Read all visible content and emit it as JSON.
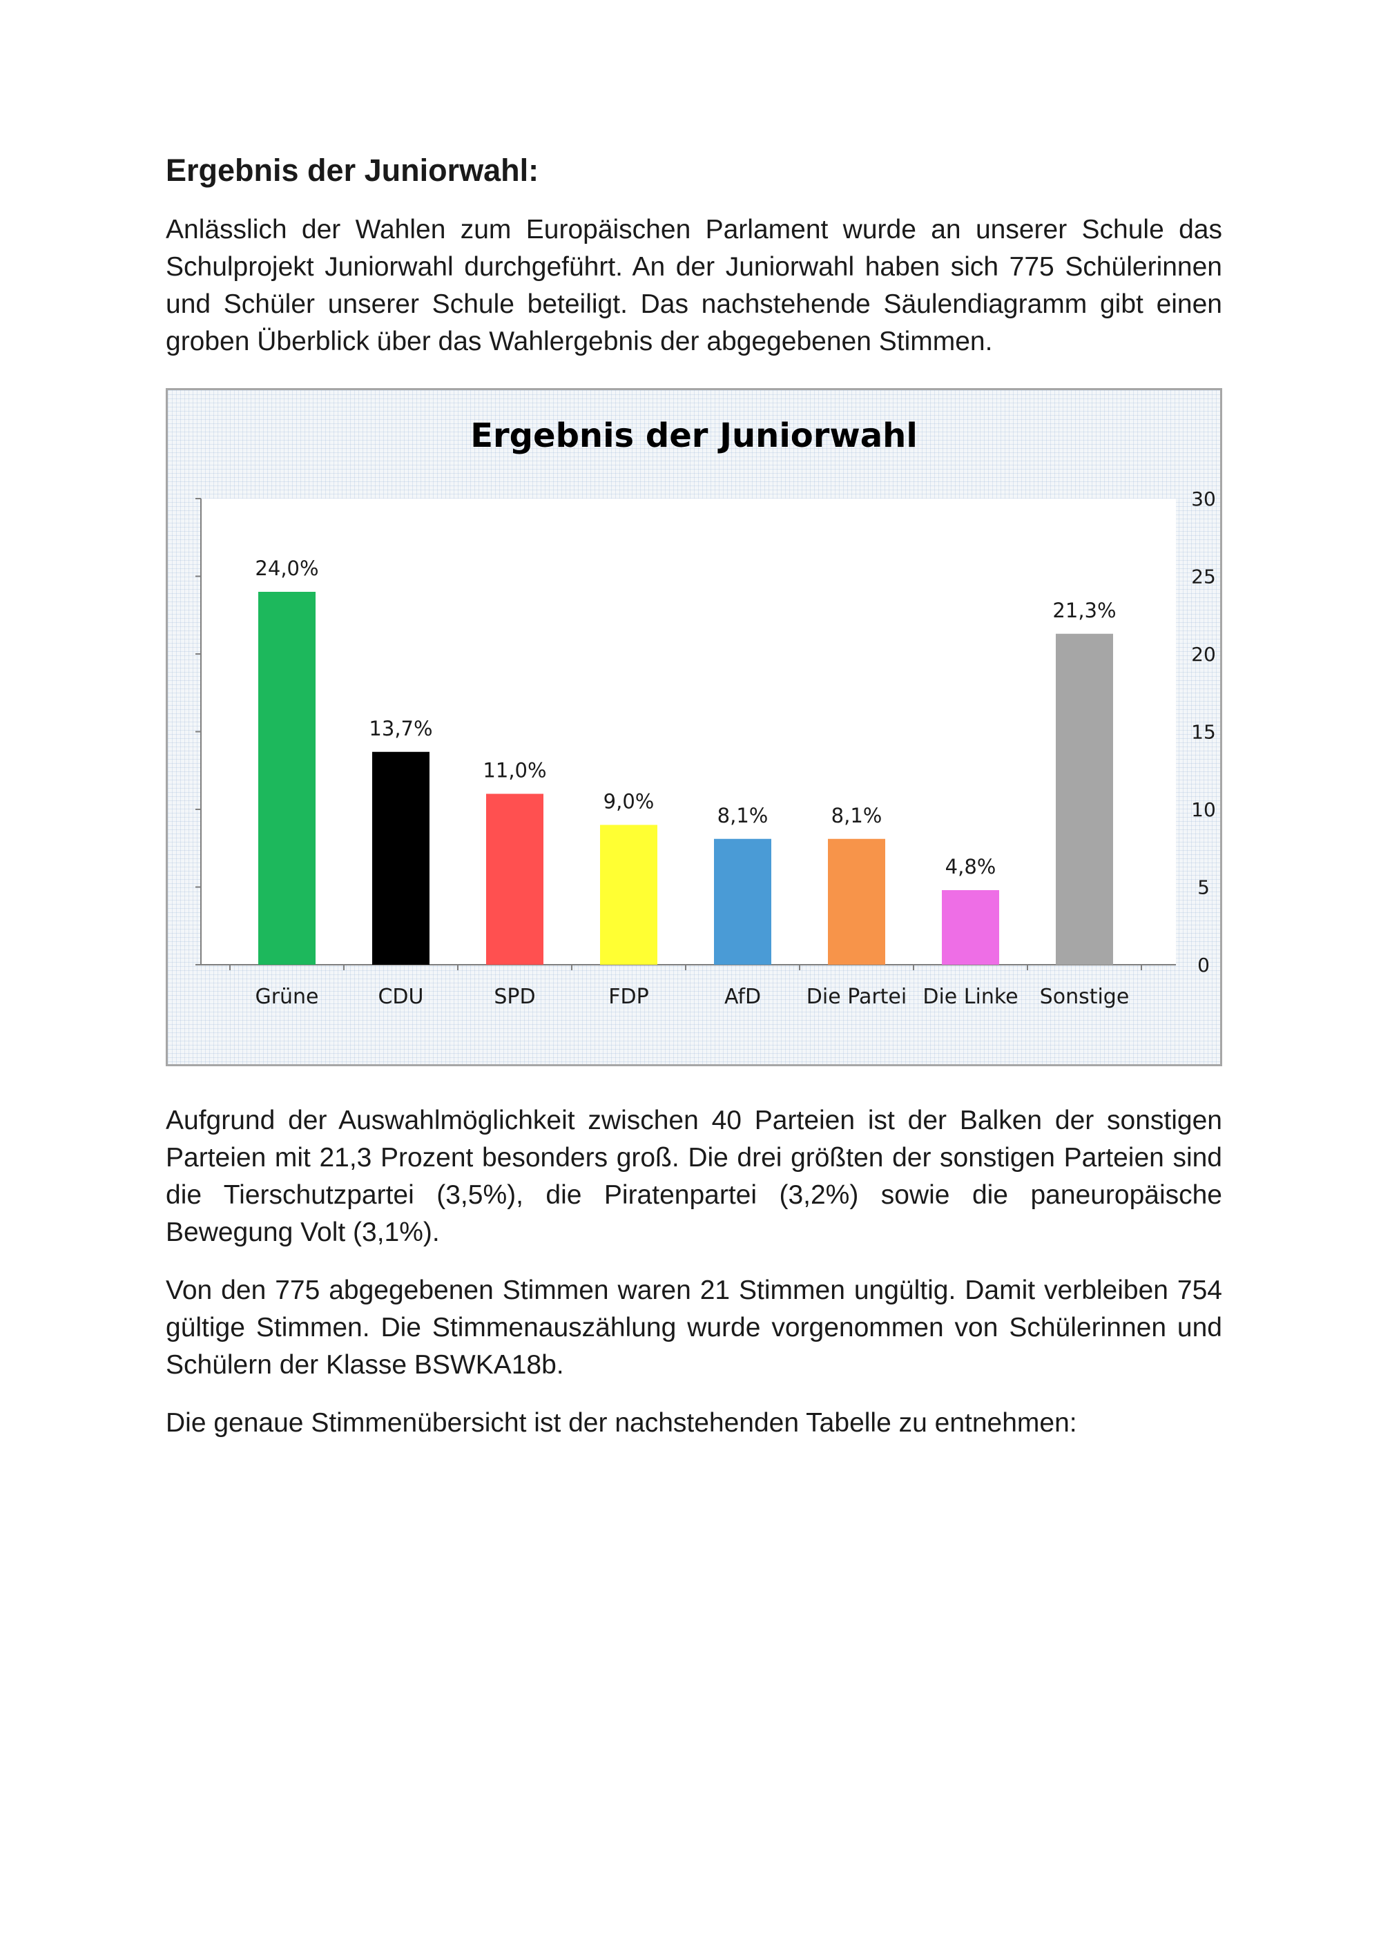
{
  "heading": "Ergebnis der Juniorwahl:",
  "paragraph1": "Anlässlich der Wahlen zum Europäischen Parlament wurde an unserer Schule das Schulprojekt Juniorwahl durchgeführt. An der Juniorwahl haben sich 775 Schülerinnen und Schüler unserer Schule beteiligt. Das nachstehende Säulendiagramm gibt einen groben Überblick über das Wahlergebnis der abgegebenen Stimmen.",
  "paragraph2": "Aufgrund der Auswahlmöglichkeit zwischen 40 Parteien ist der Balken der sonstigen Parteien mit 21,3 Prozent besonders groß. Die drei größten der sonstigen Parteien sind die Tierschutzpartei (3,5%), die Piratenpartei (3,2%) sowie die paneuropäische Bewegung Volt (3,1%).",
  "paragraph3": "Von den 775 abgegebenen Stimmen waren 21 Stimmen ungültig. Damit verbleiben 754 gültige Stimmen. Die Stimmenauszählung wurde vorgenommen von Schülerinnen und Schülern der Klasse BSWKA18b.",
  "paragraph4": "Die genaue Stimmenübersicht ist der nachstehenden Tabelle zu entnehmen:",
  "chart_data": {
    "type": "bar",
    "title": "Ergebnis der Juniorwahl",
    "categories": [
      "Grüne",
      "CDU",
      "SPD",
      "FDP",
      "AfD",
      "Die Partei",
      "Die Linke",
      "Sonstige"
    ],
    "values": [
      24.0,
      13.7,
      11.0,
      9.0,
      8.1,
      8.1,
      4.8,
      21.3
    ],
    "data_labels": [
      "24,0%",
      "13,7%",
      "11,0%",
      "9,0%",
      "8,1%",
      "8,1%",
      "4,8%",
      "21,3%"
    ],
    "colors": [
      "#1db85c",
      "#000000",
      "#ff5050",
      "#ffff33",
      "#4a9bd6",
      "#f7944a",
      "#ee6ee6",
      "#a6a6a6"
    ],
    "ylim": [
      0,
      30
    ],
    "yticks": [
      "0",
      "5",
      "10",
      "15",
      "20",
      "25",
      "30"
    ],
    "ytick_values": [
      0,
      5,
      10,
      15,
      20,
      25,
      30
    ],
    "y_axis_side": "right",
    "legend": false,
    "grid": false
  }
}
